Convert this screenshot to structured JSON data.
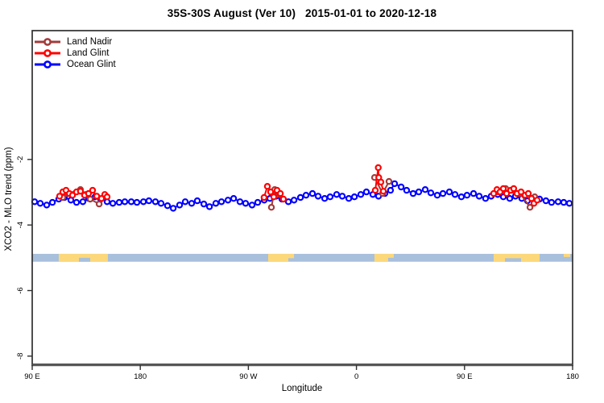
{
  "page": {
    "title": "35S-30S August (Ver 10)   2015-01-01 to 2020-12-18"
  },
  "legend": {
    "items": [
      {
        "label": "Land Nadir",
        "color": "#a33b3b"
      },
      {
        "label": "Land Glint",
        "color": "#ff0000"
      },
      {
        "label": "Ocean Glint",
        "color": "#0000ff"
      }
    ]
  },
  "colors": {
    "axis": "#2f2f2f",
    "bottom_axis": "#555555",
    "band_ocean": "#a8c0dc",
    "band_land": "#fcd87b",
    "marker_fill": "#ffffff"
  },
  "chart_data": {
    "type": "line",
    "title": "35S-30S August (Ver 10)   2015-01-01 to 2020-12-18",
    "xlabel": "Longitude",
    "ylabel": "XCO2 - MLO trend (ppm)",
    "x_axis": {
      "range_deg": [
        0,
        450
      ],
      "ticks_deg": [
        0,
        90,
        180,
        270,
        360,
        450
      ],
      "tick_labels": [
        "90 E",
        "180",
        "90 W",
        "0",
        "90 E",
        "180"
      ],
      "note": "degrees east of 90E, wrapping through 180, 90W, 0, 90E to 180"
    },
    "y_axis": {
      "range": [
        -8.25,
        1.93
      ],
      "ticks": [
        -2,
        -4,
        -6,
        -8
      ],
      "tick_labels": [
        "-2",
        "-4",
        "-6",
        "-8"
      ]
    },
    "grid": false,
    "legend_position": "top-left",
    "land_ocean_band": {
      "top_ppm": -4.88,
      "bottom_ppm": -5.12,
      "ocean_color": "#a8c0dc",
      "land_color": "#fcd87b",
      "overlays": [
        {
          "type": "land",
          "from": 22.1,
          "to": 63.0,
          "top": 0,
          "bottom": 1
        },
        {
          "type": "ocean",
          "from": 38.9,
          "to": 48.3,
          "top": 0.5,
          "bottom": 1
        },
        {
          "type": "land",
          "from": 196.5,
          "to": 213.3,
          "top": 0,
          "bottom": 1
        },
        {
          "type": "land",
          "from": 213.3,
          "to": 218.0,
          "top": 0,
          "bottom": 0.55
        },
        {
          "type": "land",
          "from": 285.0,
          "to": 296.4,
          "top": 0,
          "bottom": 1
        },
        {
          "type": "land",
          "from": 296.4,
          "to": 301.1,
          "top": 0,
          "bottom": 0.5
        },
        {
          "type": "land",
          "from": 384.3,
          "to": 422.5,
          "top": 0,
          "bottom": 1
        },
        {
          "type": "ocean",
          "from": 393.7,
          "to": 407.1,
          "top": 0.55,
          "bottom": 1
        },
        {
          "type": "land",
          "from": 442.6,
          "to": 448.0,
          "top": 0,
          "bottom": 0.4
        }
      ]
    },
    "series": [
      {
        "name": "Ocean Glint",
        "color": "#0000ff",
        "segments": [
          [
            [
              2.0,
              -3.29
            ],
            [
              6.7,
              -3.34
            ],
            [
              12.1,
              -3.39
            ],
            [
              16.8,
              -3.31
            ],
            [
              22.1,
              -3.21
            ],
            [
              26.8,
              -3.16
            ],
            [
              32.2,
              -3.24
            ],
            [
              36.9,
              -3.31
            ],
            [
              42.2,
              -3.29
            ],
            [
              46.9,
              -3.19
            ],
            [
              52.3,
              -3.14
            ],
            [
              57.0,
              -3.21
            ],
            [
              62.4,
              -3.29
            ],
            [
              67.1,
              -3.34
            ],
            [
              72.4,
              -3.31
            ],
            [
              77.1,
              -3.29
            ],
            [
              82.5,
              -3.29
            ],
            [
              87.2,
              -3.31
            ],
            [
              92.6,
              -3.29
            ],
            [
              97.2,
              -3.26
            ],
            [
              102.6,
              -3.29
            ],
            [
              107.3,
              -3.34
            ],
            [
              112.7,
              -3.41
            ],
            [
              117.4,
              -3.49
            ],
            [
              122.7,
              -3.39
            ],
            [
              127.4,
              -3.29
            ],
            [
              132.8,
              -3.34
            ],
            [
              137.5,
              -3.26
            ],
            [
              142.9,
              -3.36
            ],
            [
              147.6,
              -3.44
            ],
            [
              152.9,
              -3.34
            ],
            [
              157.6,
              -3.29
            ],
            [
              163.0,
              -3.24
            ],
            [
              167.7,
              -3.19
            ],
            [
              173.0,
              -3.29
            ],
            [
              177.7,
              -3.34
            ],
            [
              183.1,
              -3.39
            ],
            [
              187.8,
              -3.31
            ],
            [
              193.2,
              -3.24
            ],
            [
              197.9,
              -3.19
            ],
            [
              203.2,
              -3.12
            ],
            [
              207.9,
              -3.21
            ],
            [
              213.3,
              -3.29
            ],
            [
              218.0,
              -3.24
            ],
            [
              223.4,
              -3.16
            ],
            [
              228.0,
              -3.09
            ],
            [
              233.4,
              -3.04
            ],
            [
              238.1,
              -3.12
            ],
            [
              243.5,
              -3.19
            ],
            [
              248.1,
              -3.14
            ],
            [
              253.5,
              -3.07
            ],
            [
              258.2,
              -3.12
            ],
            [
              263.6,
              -3.19
            ],
            [
              268.3,
              -3.14
            ],
            [
              273.6,
              -3.07
            ],
            [
              278.3,
              -2.99
            ],
            [
              283.7,
              -3.07
            ],
            [
              288.4,
              -3.12
            ],
            [
              293.7,
              -3.04
            ],
            [
              298.4,
              -2.94
            ],
            [
              301.8,
              -2.74
            ],
            [
              307.2,
              -2.84
            ],
            [
              311.8,
              -2.94
            ],
            [
              317.2,
              -3.04
            ],
            [
              321.9,
              -2.99
            ],
            [
              327.3,
              -2.92
            ],
            [
              332.0,
              -3.02
            ],
            [
              337.3,
              -3.09
            ],
            [
              342.0,
              -3.04
            ],
            [
              347.4,
              -2.99
            ],
            [
              352.1,
              -3.07
            ],
            [
              357.4,
              -3.14
            ],
            [
              362.1,
              -3.09
            ],
            [
              367.5,
              -3.04
            ],
            [
              372.2,
              -3.12
            ],
            [
              377.5,
              -3.19
            ],
            [
              382.2,
              -3.12
            ],
            [
              387.6,
              -3.07
            ],
            [
              392.3,
              -3.14
            ],
            [
              397.7,
              -3.19
            ],
            [
              402.4,
              -3.12
            ],
            [
              407.7,
              -3.19
            ],
            [
              412.4,
              -3.26
            ],
            [
              417.8,
              -3.24
            ],
            [
              422.5,
              -3.21
            ],
            [
              427.8,
              -3.26
            ],
            [
              432.5,
              -3.31
            ],
            [
              437.9,
              -3.29
            ],
            [
              442.6,
              -3.31
            ],
            [
              447.3,
              -3.34
            ]
          ]
        ]
      },
      {
        "name": "Land Nadir",
        "color": "#a33b3b",
        "segments": [
          [
            [
              25.5,
              -3.16
            ],
            [
              29.5,
              -3.04
            ],
            [
              40.2,
              -2.92
            ],
            [
              44.3,
              -3.07
            ],
            [
              48.3,
              -3.21
            ],
            [
              55.7,
              -3.36
            ]
          ],
          [
            [
              199.2,
              -3.46
            ],
            [
              201.9,
              -2.92
            ],
            [
              205.9,
              -3.07
            ]
          ],
          [
            [
              285.1,
              -2.55
            ],
            [
              291.8,
              -3.04
            ],
            [
              297.1,
              -2.67
            ]
          ],
          [
            [
              387.0,
              -2.99
            ],
            [
              394.3,
              -2.89
            ],
            [
              400.4,
              -2.94
            ],
            [
              406.4,
              -3.04
            ],
            [
              414.5,
              -3.46
            ],
            [
              418.5,
              -3.14
            ]
          ]
        ]
      },
      {
        "name": "Land Glint",
        "color": "#ff0000",
        "segments": [
          [
            [
              22.8,
              -3.12
            ],
            [
              25.5,
              -2.99
            ],
            [
              28.2,
              -2.94
            ],
            [
              30.9,
              -3.04
            ],
            [
              33.5,
              -3.09
            ],
            [
              36.9,
              -2.99
            ],
            [
              40.2,
              -2.97
            ],
            [
              43.6,
              -3.09
            ],
            [
              46.9,
              -3.04
            ],
            [
              50.3,
              -2.94
            ],
            [
              53.7,
              -3.12
            ],
            [
              57.7,
              -3.19
            ],
            [
              60.4,
              -3.07
            ],
            [
              62.4,
              -3.14
            ]
          ],
          [
            [
              193.1,
              -3.16
            ],
            [
              195.8,
              -2.82
            ],
            [
              198.5,
              -2.99
            ],
            [
              201.2,
              -3.14
            ],
            [
              203.9,
              -2.94
            ],
            [
              206.6,
              -3.04
            ],
            [
              209.2,
              -3.21
            ]
          ],
          [
            [
              285.7,
              -2.94
            ],
            [
              288.2,
              -2.25
            ],
            [
              288.6,
              -2.55
            ],
            [
              290.4,
              -2.69
            ],
            [
              292.4,
              -2.97
            ]
          ],
          [
            [
              384.3,
              -3.04
            ],
            [
              387.0,
              -2.92
            ],
            [
              389.6,
              -2.99
            ],
            [
              392.3,
              -2.89
            ],
            [
              395.0,
              -3.04
            ],
            [
              398.4,
              -2.94
            ],
            [
              401.0,
              -2.89
            ],
            [
              403.7,
              -3.04
            ],
            [
              407.1,
              -2.99
            ],
            [
              410.4,
              -3.09
            ],
            [
              413.1,
              -3.04
            ],
            [
              415.8,
              -3.19
            ],
            [
              417.8,
              -3.34
            ],
            [
              420.5,
              -3.24
            ]
          ]
        ]
      }
    ]
  }
}
